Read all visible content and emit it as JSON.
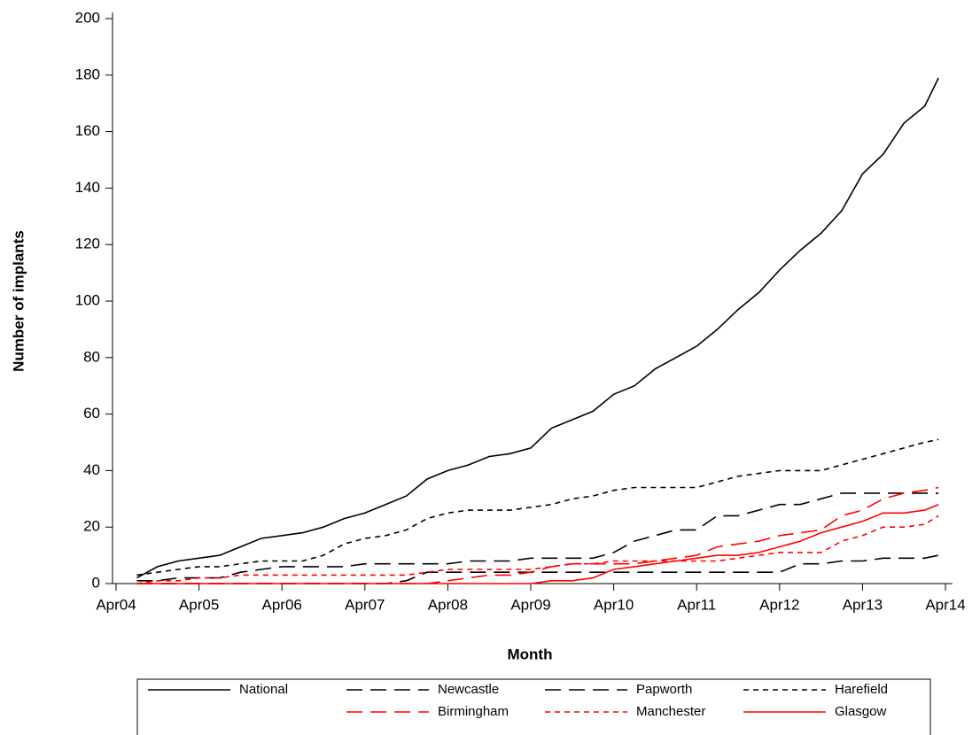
{
  "chart_data": {
    "type": "line",
    "xlabel": "Month",
    "ylabel": "Number of implants",
    "x": [
      "Jul04",
      "Oct04",
      "Jan05",
      "Apr05",
      "Jul05",
      "Oct05",
      "Jan06",
      "Apr06",
      "Jul06",
      "Oct06",
      "Jan07",
      "Apr07",
      "Jul07",
      "Oct07",
      "Jan08",
      "Apr08",
      "Jul08",
      "Oct08",
      "Jan09",
      "Apr09",
      "Jul09",
      "Oct09",
      "Jan10",
      "Apr10",
      "Jul10",
      "Oct10",
      "Jan11",
      "Apr11",
      "Jul11",
      "Oct11",
      "Jan12",
      "Apr12",
      "Jul12",
      "Oct12",
      "Jan13",
      "Apr13",
      "Jul13",
      "Oct13",
      "Jan14",
      "Mar14"
    ],
    "xlim": [
      "Apr04",
      "Apr14"
    ],
    "xticks": [
      "Apr04",
      "Apr05",
      "Apr06",
      "Apr07",
      "Apr08",
      "Apr09",
      "Apr10",
      "Apr11",
      "Apr12",
      "Apr13",
      "Apr14"
    ],
    "ylim": [
      0,
      200
    ],
    "yticks": [
      0,
      20,
      40,
      60,
      80,
      100,
      120,
      140,
      160,
      180,
      200
    ],
    "series": [
      {
        "name": "National",
        "color": "#000000",
        "linestyle": "solid",
        "values": [
          2,
          6,
          8,
          9,
          10,
          13,
          16,
          17,
          18,
          20,
          23,
          25,
          28,
          31,
          37,
          40,
          42,
          45,
          46,
          48,
          55,
          58,
          61,
          67,
          70,
          76,
          80,
          84,
          90,
          97,
          103,
          111,
          118,
          124,
          132,
          145,
          152,
          163,
          169,
          179
        ]
      },
      {
        "name": "Newcastle",
        "color": "#000000",
        "linestyle": "longdash",
        "values": [
          1,
          1,
          2,
          2,
          2,
          4,
          5,
          6,
          6,
          6,
          6,
          7,
          7,
          7,
          7,
          7,
          8,
          8,
          8,
          9,
          9,
          9,
          9,
          11,
          15,
          17,
          19,
          19,
          24,
          24,
          26,
          28,
          28,
          30,
          32,
          32,
          32,
          32,
          32,
          32
        ]
      },
      {
        "name": "Papworth",
        "color": "#000000",
        "linestyle": "longdash",
        "values": [
          0,
          0,
          0,
          0,
          0,
          0,
          0,
          0,
          0,
          0,
          0,
          0,
          0,
          1,
          4,
          4,
          4,
          4,
          4,
          4,
          4,
          4,
          4,
          4,
          4,
          4,
          4,
          4,
          4,
          4,
          4,
          4,
          7,
          7,
          8,
          8,
          9,
          9,
          9,
          10
        ]
      },
      {
        "name": "Harefield",
        "color": "#000000",
        "linestyle": "dash",
        "values": [
          3,
          4,
          5,
          6,
          6,
          7,
          8,
          8,
          8,
          10,
          14,
          16,
          17,
          19,
          23,
          25,
          26,
          26,
          26,
          27,
          28,
          30,
          31,
          33,
          34,
          34,
          34,
          34,
          36,
          38,
          39,
          40,
          40,
          40,
          42,
          44,
          46,
          48,
          50,
          51
        ]
      },
      {
        "name": "Birmingham",
        "color": "#ff0000",
        "linestyle": "longdash",
        "values": [
          0,
          0,
          0,
          0,
          0,
          0,
          0,
          0,
          0,
          0,
          0,
          0,
          0,
          0,
          0,
          1,
          2,
          3,
          3,
          4,
          6,
          7,
          7,
          7,
          7,
          8,
          9,
          10,
          13,
          14,
          15,
          17,
          18,
          19,
          24,
          26,
          30,
          32,
          33,
          34
        ]
      },
      {
        "name": "Manchester",
        "color": "#ff0000",
        "linestyle": "dash",
        "values": [
          0,
          1,
          1,
          2,
          2,
          3,
          3,
          3,
          3,
          3,
          3,
          3,
          3,
          3,
          4,
          5,
          5,
          5,
          5,
          5,
          6,
          7,
          7,
          8,
          8,
          8,
          8,
          8,
          8,
          9,
          10,
          11,
          11,
          11,
          15,
          17,
          20,
          20,
          21,
          24
        ]
      },
      {
        "name": "Glasgow",
        "color": "#ff0000",
        "linestyle": "solid",
        "values": [
          0,
          0,
          0,
          0,
          0,
          0,
          0,
          0,
          0,
          0,
          0,
          0,
          0,
          0,
          0,
          0,
          0,
          0,
          0,
          0,
          1,
          1,
          2,
          5,
          6,
          7,
          8,
          9,
          10,
          10,
          11,
          13,
          15,
          18,
          20,
          22,
          25,
          25,
          26,
          28
        ]
      }
    ]
  }
}
